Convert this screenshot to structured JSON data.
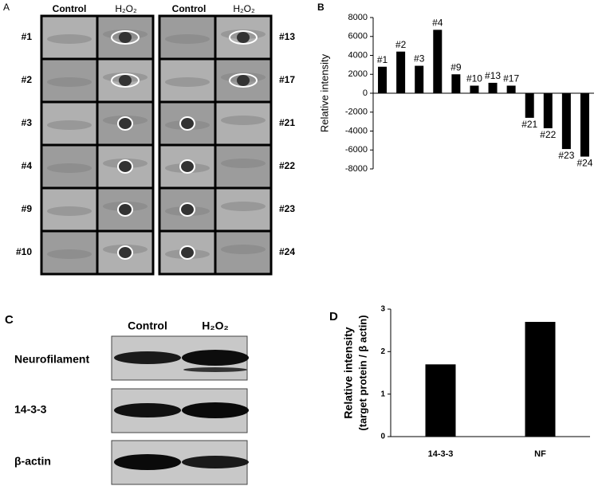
{
  "panels": {
    "a": "A",
    "b": "B",
    "c": "C",
    "d": "D"
  },
  "gel_a": {
    "columns": [
      "Control",
      "H₂O₂",
      "Control",
      "H₂O₂"
    ],
    "left_spots": [
      "#1",
      "#2",
      "#3",
      "#4",
      "#9",
      "#10"
    ],
    "right_spots": [
      "#13",
      "#17",
      "#21",
      "#22",
      "#23",
      "#24"
    ]
  },
  "blot_c": {
    "columns": [
      "Control",
      "H₂O₂"
    ],
    "rows": [
      "Neurofilament",
      "14-3-3",
      "β-actin"
    ]
  },
  "chart_data": [
    {
      "type": "bar",
      "y_label": "Relative intensity",
      "categories": [
        "#1",
        "#2",
        "#3",
        "#4",
        "#9",
        "#10",
        "#13",
        "#17",
        "#21",
        "#22",
        "#23",
        "#24"
      ],
      "values": [
        2800,
        4400,
        2900,
        6700,
        2000,
        800,
        1100,
        800,
        -2600,
        -3700,
        -5900,
        -6700
      ],
      "color": "#000000",
      "ylim": [
        -8000,
        8000
      ],
      "yticks": [
        -8000,
        -6000,
        -4000,
        -2000,
        0,
        2000,
        4000,
        6000,
        8000
      ]
    },
    {
      "type": "bar",
      "y_label": [
        "Relative intensity",
        "(target protein / β actin)"
      ],
      "categories": [
        "14-3-3",
        "NF"
      ],
      "values": [
        1.7,
        2.7
      ],
      "color": "#000000",
      "ylim": [
        0,
        3
      ],
      "yticks": [
        0,
        1,
        2,
        3
      ]
    }
  ]
}
